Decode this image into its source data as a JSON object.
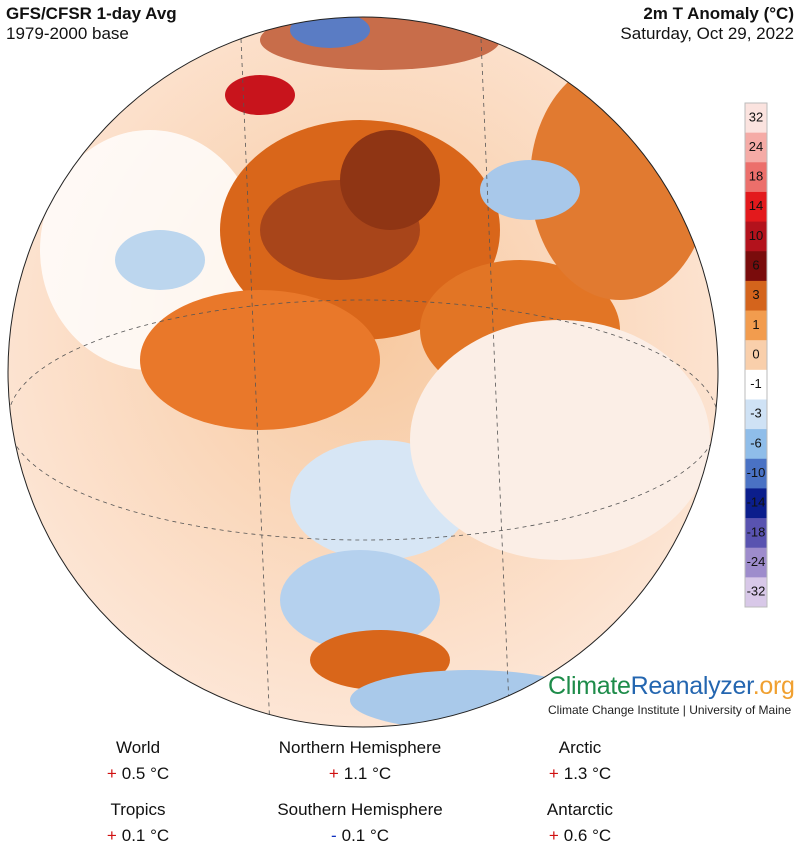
{
  "header": {
    "model": "GFS/CFSR 1-day Avg",
    "baseline": "1979-2000 base",
    "variable": "2m T Anomaly (°C)",
    "date": "Saturday, Oct 29, 2022"
  },
  "colorbar": {
    "labels": [
      "32",
      "24",
      "18",
      "14",
      "10",
      "6",
      "3",
      "1",
      "0",
      "-1",
      "-3",
      "-6",
      "-10",
      "-14",
      "-18",
      "-24",
      "-32"
    ],
    "colors": [
      "#fbe3df",
      "#f5aba6",
      "#ec6f6b",
      "#e3191c",
      "#b3121c",
      "#7a0c0c",
      "#d4641c",
      "#f29c4e",
      "#f9cfab",
      "#ffffff",
      "#cfe2f5",
      "#8fbde9",
      "#4a72c4",
      "#0b1e8c",
      "#5953b0",
      "#9e8ccc",
      "#d8c8e8"
    ]
  },
  "footer": {
    "logo": [
      "Climate",
      "Reanalyzer",
      ".org"
    ],
    "institution": "Climate Change Institute | University of Maine"
  },
  "stats": [
    {
      "label": "World",
      "sign": "+",
      "sign_color": "#d01010",
      "value": "0.5 °C"
    },
    {
      "label": "Northern Hemisphere",
      "sign": "+",
      "sign_color": "#d01010",
      "value": "1.1 °C"
    },
    {
      "label": "Arctic",
      "sign": "+",
      "sign_color": "#d01010",
      "value": "1.3 °C"
    },
    {
      "label": "Tropics",
      "sign": "+",
      "sign_color": "#d01010",
      "value": "0.1 °C"
    },
    {
      "label": "Southern Hemisphere",
      "sign": "-",
      "sign_color": "#1030c0",
      "value": "0.1 °C"
    },
    {
      "label": "Antarctic",
      "sign": "+",
      "sign_color": "#d01010",
      "value": "0.6 °C"
    }
  ]
}
